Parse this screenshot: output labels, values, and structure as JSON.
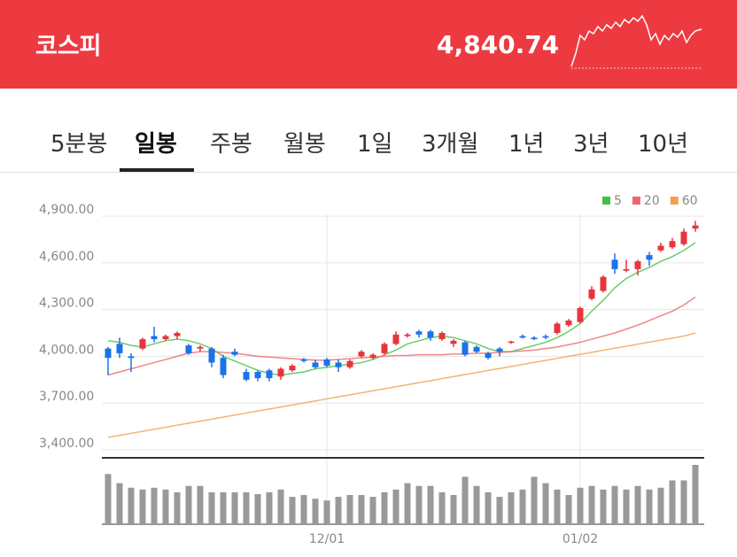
{
  "header": {
    "title": "코스피",
    "price": "4,840.74"
  },
  "tabs": [
    "5분봉",
    "일봉",
    "주봉",
    "월봉",
    "1일",
    "3개월",
    "1년",
    "3년",
    "10년"
  ],
  "selected_tab": 1,
  "chart_data": {
    "type": "candlestick",
    "categories": [
      null,
      null,
      null,
      null,
      null,
      null,
      null,
      null,
      null,
      null,
      null,
      null,
      null,
      null,
      null,
      null,
      null,
      null,
      null,
      "12/01",
      null,
      null,
      null,
      null,
      null,
      null,
      null,
      null,
      null,
      null,
      null,
      null,
      null,
      null,
      null,
      null,
      null,
      null,
      null,
      null,
      null,
      "01/02",
      null,
      null,
      null,
      null,
      null,
      null,
      null,
      null,
      null,
      null
    ],
    "open": [
      4050,
      4080,
      4000,
      4050,
      4130,
      4110,
      4130,
      4070,
      4050,
      4050,
      3990,
      4030,
      3900,
      3900,
      3910,
      3870,
      3910,
      3980,
      3960,
      3980,
      3960,
      3930,
      4000,
      3990,
      4020,
      4080,
      4130,
      4160,
      4160,
      4110,
      4080,
      4090,
      4060,
      4020,
      4050,
      4090,
      4130,
      4120,
      4130,
      4150,
      4200,
      4220,
      4370,
      4420,
      4620,
      4550,
      4560,
      4650,
      4680,
      4700,
      4720,
      4820
    ],
    "high": [
      4060,
      4120,
      4020,
      4120,
      4190,
      4140,
      4160,
      4080,
      4070,
      4060,
      4010,
      4050,
      3920,
      3910,
      3920,
      3930,
      3950,
      3990,
      3980,
      3990,
      3980,
      3980,
      4040,
      4020,
      4090,
      4160,
      4150,
      4170,
      4170,
      4160,
      4110,
      4100,
      4070,
      4030,
      4060,
      4100,
      4140,
      4130,
      4140,
      4220,
      4240,
      4320,
      4450,
      4520,
      4660,
      4620,
      4620,
      4670,
      4730,
      4760,
      4820,
      4870
    ],
    "low": [
      3880,
      3990,
      3900,
      4040,
      4090,
      4100,
      4110,
      4010,
      4030,
      3930,
      3860,
      4000,
      3840,
      3840,
      3840,
      3850,
      3900,
      3960,
      3920,
      3930,
      3900,
      3920,
      3990,
      3980,
      4010,
      4070,
      4120,
      4120,
      4100,
      4100,
      4060,
      4000,
      4020,
      3980,
      4000,
      4080,
      4115,
      4105,
      4110,
      4140,
      4190,
      4210,
      4360,
      4410,
      4530,
      4540,
      4520,
      4580,
      4670,
      4690,
      4710,
      4800
    ],
    "close": [
      3990,
      4020,
      3990,
      4110,
      4110,
      4130,
      4150,
      4020,
      4060,
      3960,
      3880,
      4010,
      3850,
      3860,
      3860,
      3920,
      3940,
      3970,
      3930,
      3940,
      3930,
      3970,
      4030,
      4010,
      4080,
      4140,
      4140,
      4140,
      4120,
      4150,
      4100,
      4010,
      4030,
      3990,
      4030,
      4095,
      4120,
      4110,
      4120,
      4210,
      4230,
      4310,
      4430,
      4510,
      4560,
      4560,
      4610,
      4620,
      4710,
      4740,
      4800,
      4840
    ],
    "up_color": "#e8343c",
    "down_color": "#1a73e8",
    "ma": [
      {
        "name": "5",
        "color": "#44c044",
        "values": [
          4100,
          4090,
          4070,
          4060,
          4080,
          4100,
          4110,
          4100,
          4080,
          4050,
          4000,
          3970,
          3940,
          3910,
          3890,
          3880,
          3890,
          3900,
          3920,
          3930,
          3940,
          3950,
          3960,
          3980,
          4010,
          4040,
          4080,
          4100,
          4120,
          4130,
          4120,
          4100,
          4080,
          4050,
          4030,
          4030,
          4050,
          4070,
          4090,
          4120,
          4160,
          4210,
          4290,
          4360,
          4440,
          4500,
          4540,
          4570,
          4610,
          4640,
          4680,
          4730
        ]
      },
      {
        "name": "20",
        "color": "#ec6670",
        "values": [
          3880,
          3900,
          3920,
          3940,
          3960,
          3980,
          4000,
          4020,
          4030,
          4030,
          4025,
          4020,
          4010,
          4000,
          3995,
          3990,
          3985,
          3980,
          3975,
          3975,
          3980,
          3985,
          3990,
          3995,
          4000,
          4005,
          4005,
          4010,
          4010,
          4010,
          4015,
          4015,
          4020,
          4020,
          4025,
          4030,
          4035,
          4040,
          4050,
          4060,
          4075,
          4090,
          4110,
          4130,
          4150,
          4175,
          4200,
          4230,
          4260,
          4290,
          4330,
          4380
        ]
      },
      {
        "name": "60",
        "color": "#f0a050",
        "values": [
          3480,
          3493,
          3506,
          3519,
          3532,
          3545,
          3558,
          3571,
          3584,
          3597,
          3610,
          3623,
          3636,
          3649,
          3662,
          3675,
          3688,
          3701,
          3714,
          3727,
          3740,
          3753,
          3766,
          3779,
          3792,
          3805,
          3818,
          3831,
          3844,
          3857,
          3870,
          3883,
          3896,
          3909,
          3922,
          3935,
          3948,
          3961,
          3974,
          3987,
          4000,
          4013,
          4026,
          4039,
          4052,
          4065,
          4078,
          4091,
          4104,
          4117,
          4130,
          4150
        ]
      }
    ],
    "volume": {
      "color": "#999999",
      "values": [
        55,
        45,
        40,
        38,
        40,
        38,
        35,
        42,
        42,
        35,
        35,
        35,
        35,
        33,
        35,
        38,
        30,
        32,
        28,
        26,
        30,
        32,
        32,
        30,
        35,
        38,
        45,
        42,
        42,
        35,
        32,
        52,
        42,
        35,
        30,
        35,
        38,
        52,
        45,
        38,
        32,
        40,
        42,
        38,
        42,
        38,
        42,
        38,
        40,
        48,
        48,
        65
      ]
    },
    "ylim": [
      3360,
      4980
    ],
    "yticks": [
      {
        "value": 3400,
        "label": "3,400.00"
      },
      {
        "value": 3700,
        "label": "3,700.00"
      },
      {
        "value": 4000,
        "label": "4,000.00"
      },
      {
        "value": 4300,
        "label": "4,300.00"
      },
      {
        "value": 4600,
        "label": "4,600.00"
      },
      {
        "value": 4900,
        "label": "4,900.00"
      }
    ],
    "grid": true
  }
}
